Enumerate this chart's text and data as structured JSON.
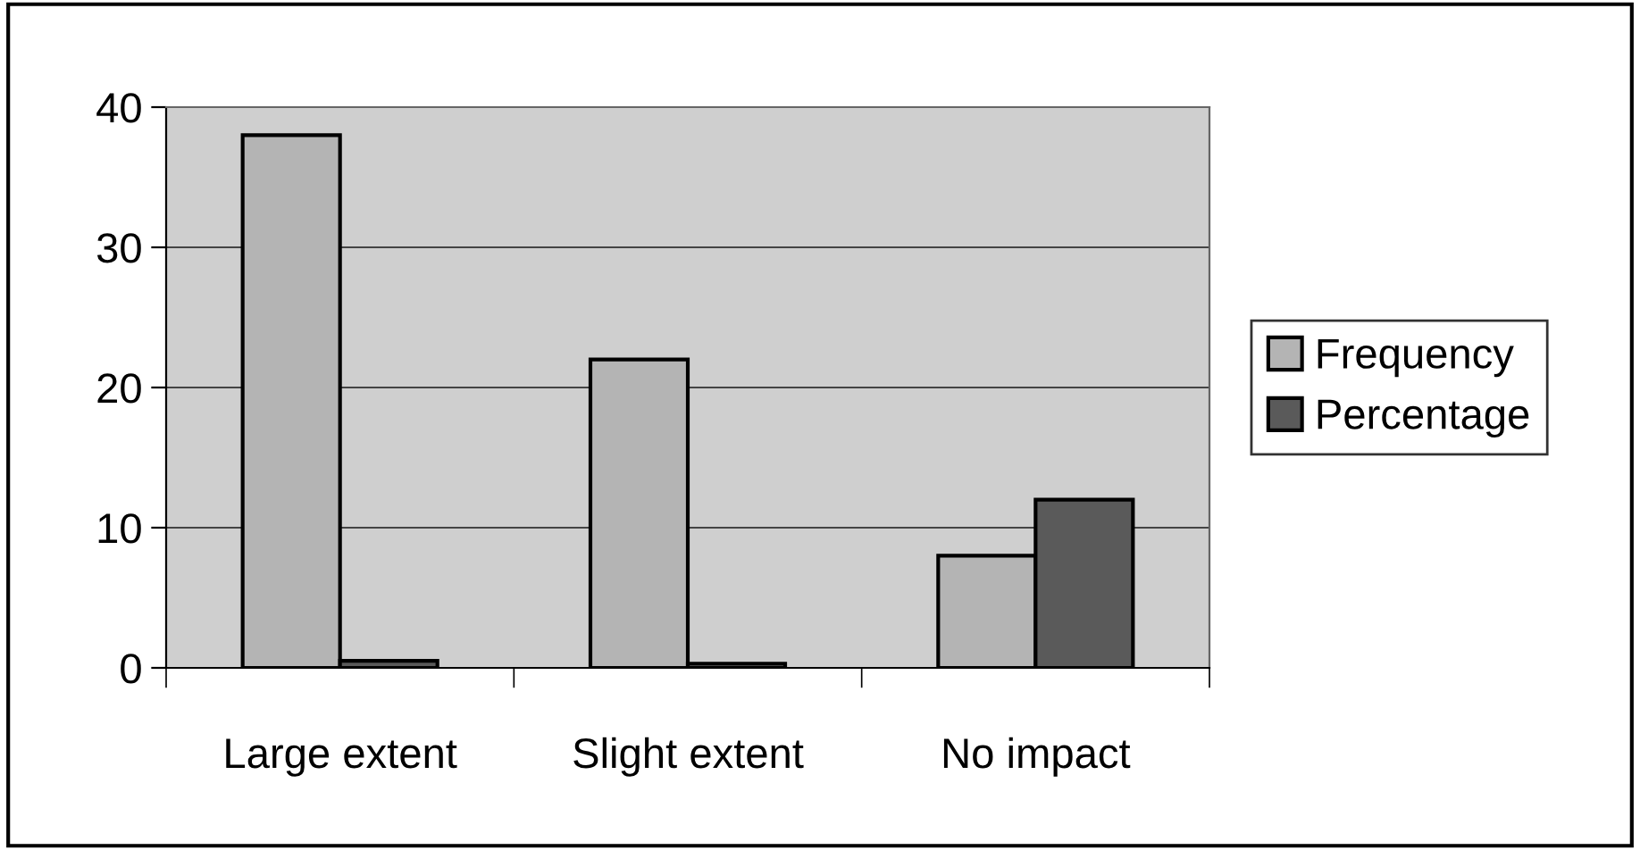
{
  "chart_data": {
    "type": "bar",
    "categories": [
      "Large extent",
      "Slight extent",
      "No impact"
    ],
    "series": [
      {
        "name": "Frequency",
        "color": "#b4b4b4",
        "values": [
          38,
          22,
          8
        ]
      },
      {
        "name": "Percentage",
        "color": "#5a5a5a",
        "values": [
          0.5,
          0.3,
          12
        ]
      }
    ],
    "ylim": [
      0,
      40
    ],
    "yticks": [
      0,
      10,
      20,
      30,
      40
    ],
    "grid": "y",
    "legend": "right"
  }
}
